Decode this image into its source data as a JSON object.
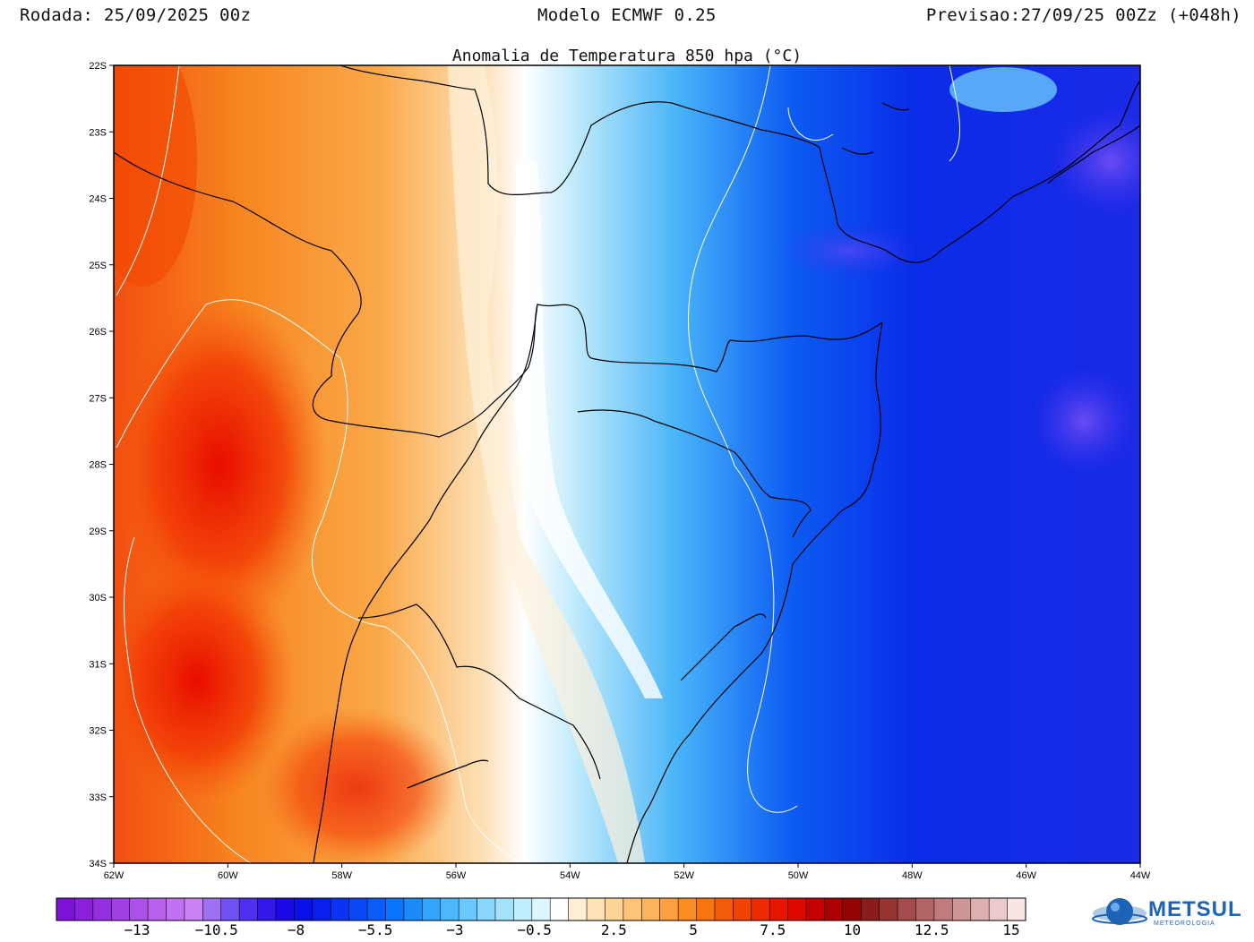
{
  "header": {
    "run": "Rodada: 25/09/2025 00z",
    "model": "Modelo ECMWF 0.25",
    "forecast": "Previsao:27/09/25 00Zz (+048h)"
  },
  "map": {
    "title": "Anomalia de Temperatura 850 hpa (°C)",
    "lat_labels": [
      "22S",
      "23S",
      "24S",
      "25S",
      "26S",
      "27S",
      "28S",
      "29S",
      "30S",
      "31S",
      "32S",
      "33S",
      "34S"
    ],
    "lon_labels": [
      "62W",
      "60W",
      "58W",
      "56W",
      "54W",
      "52W",
      "50W",
      "48W",
      "46W",
      "44W"
    ]
  },
  "colorbar": {
    "labels": [
      "−13",
      "−10.5",
      "−8",
      "−5.5",
      "−3",
      "−0.5",
      "2.5",
      "5",
      "7.5",
      "10",
      "12.5",
      "15"
    ],
    "colors": [
      "#7f10d8",
      "#8a20dc",
      "#9530e0",
      "#a040e4",
      "#ab50e8",
      "#b660ec",
      "#c070f0",
      "#cb80f4",
      "#a070f2",
      "#7050f0",
      "#5030ee",
      "#3218ea",
      "#1a08e6",
      "#0a10e8",
      "#0a20ee",
      "#0a34f2",
      "#0a48f6",
      "#0a5cf8",
      "#0a74fa",
      "#1a8cfa",
      "#34a4fc",
      "#4cb8fc",
      "#6ac8fc",
      "#88d6fc",
      "#a4e2fc",
      "#c0eefc",
      "#dcf6fe",
      "#ffffff",
      "#ffeed2",
      "#fde2b4",
      "#fcd496",
      "#fcc478",
      "#fbb45a",
      "#fba03e",
      "#fa8c24",
      "#f87410",
      "#f45c08",
      "#f04400",
      "#ec2c00",
      "#e81400",
      "#dc0800",
      "#c40000",
      "#ac0000",
      "#940606",
      "#8a1c1c",
      "#963434",
      "#a44c4c",
      "#b26464",
      "#c07c7c",
      "#ce9696",
      "#dcb0b0",
      "#eacaca",
      "#f8e6e6"
    ]
  },
  "logo": {
    "text": "METSUL",
    "subtitle": "METEOROLOGIA"
  }
}
